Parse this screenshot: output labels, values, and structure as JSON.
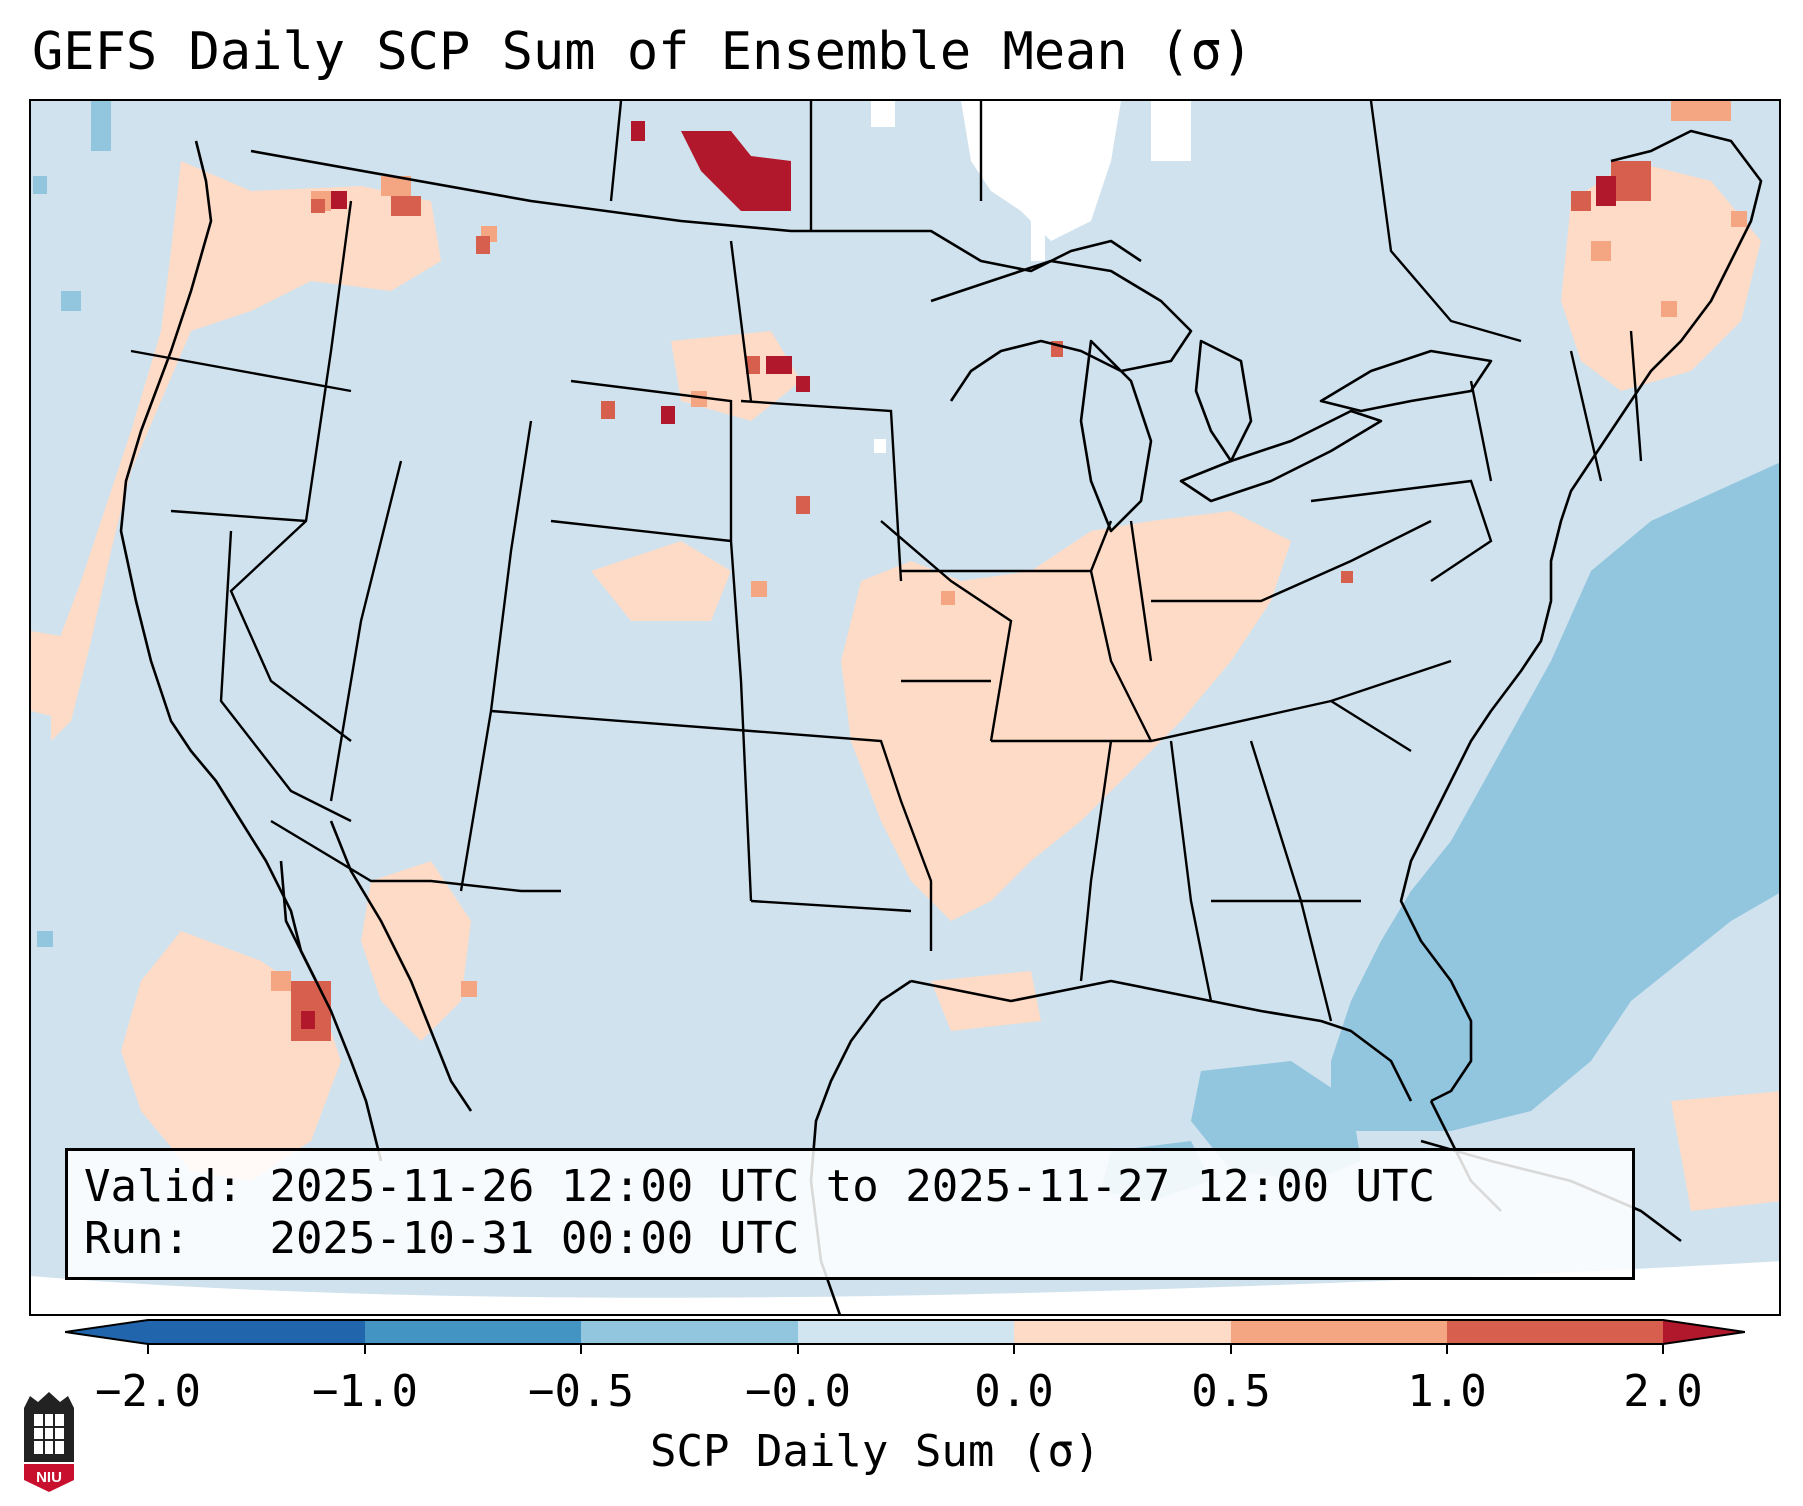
{
  "title": "GEFS Daily SCP Sum of Ensemble Mean (σ)",
  "info": {
    "valid_label": "Valid:",
    "valid_value": "2025-11-26 12:00 UTC to 2025-11-27 12:00 UTC",
    "run_label": "Run:",
    "run_value": "2025-10-31 00:00 UTC"
  },
  "colorbar": {
    "title": "SCP Daily Sum (σ)",
    "ticks": [
      "−2.0",
      "−1.0",
      "−0.5",
      "−0.0",
      "0.0",
      "0.5",
      "1.0",
      "2.0"
    ],
    "colors": [
      "#2166ac",
      "#4393c3",
      "#92c5de",
      "#d1e5f0",
      "#fddbc7",
      "#f4a582",
      "#d6604d",
      "#b2182b"
    ]
  },
  "logo": {
    "text": "NIU",
    "icon": "niu-logo-icon"
  },
  "colors": {
    "background": "#cfe2ee",
    "positive_light": "#fddbc7",
    "positive_mid": "#f4a582",
    "positive_high": "#d6604d",
    "positive_max": "#b2182b",
    "negative_light": "#92c5de",
    "near_zero": "#ffffff"
  }
}
